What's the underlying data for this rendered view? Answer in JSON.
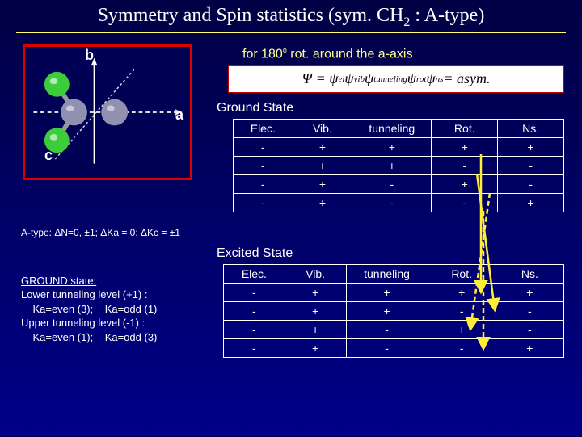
{
  "title_html": "Symmetry and Spin statistics (sym. CH<sub>2</sub> : A-type)",
  "diagram": {
    "axis_b": "b",
    "axis_a": "a",
    "axis_c": "c",
    "colors": {
      "H": "#44dd44",
      "C": "#8888aa",
      "bond": "#888888",
      "axis": "#ffffff",
      "axis_dash": "#cccccc",
      "border": "#dd0000"
    }
  },
  "rotation_label_html": "for 180<sup>o</sup> rot. around the a-axis",
  "equation_html": "Ψ = ψ<sub>el</sub> ψ<sub>vib</sub> ψ<sub>tunneling</sub> ψ<sub>rot</sub> ψ<sub>ns</sub> = asym.",
  "ground_state": {
    "label": "Ground State",
    "headers": [
      "Elec.",
      "Vib.",
      "tunneling",
      "Rot.",
      "Ns."
    ],
    "rows": [
      [
        "-",
        "+",
        "+",
        "+",
        "+"
      ],
      [
        "-",
        "+",
        "+",
        "-",
        "-"
      ],
      [
        "-",
        "+",
        "-",
        "+",
        "-"
      ],
      [
        "-",
        "+",
        "-",
        "-",
        "+"
      ]
    ]
  },
  "excited_state": {
    "label": "Excited State",
    "headers": [
      "Elec.",
      "Vib.",
      "tunneling",
      "Rot.",
      "Ns."
    ],
    "rows": [
      [
        "-",
        "+",
        "+",
        "+",
        "+"
      ],
      [
        "-",
        "+",
        "+",
        "-",
        "-"
      ],
      [
        "-",
        "+",
        "-",
        "+",
        "-"
      ],
      [
        "-",
        "+",
        "-",
        "-",
        "+"
      ]
    ]
  },
  "selection_rule": "A-type: ΔN=0, ±1; ΔKa = 0; ΔKc = ±1",
  "ground_info": {
    "title": "GROUND state:",
    "lines": [
      "Lower tunneling level (+1) :",
      "    Ka=even (3);    Ka=odd (1)",
      "Upper tunneling level (-1) :",
      "    Ka=even (1);    Ka=odd (3)"
    ]
  },
  "arrows": {
    "color_solid": "#ffee33",
    "color_dash": "#ffee33"
  }
}
